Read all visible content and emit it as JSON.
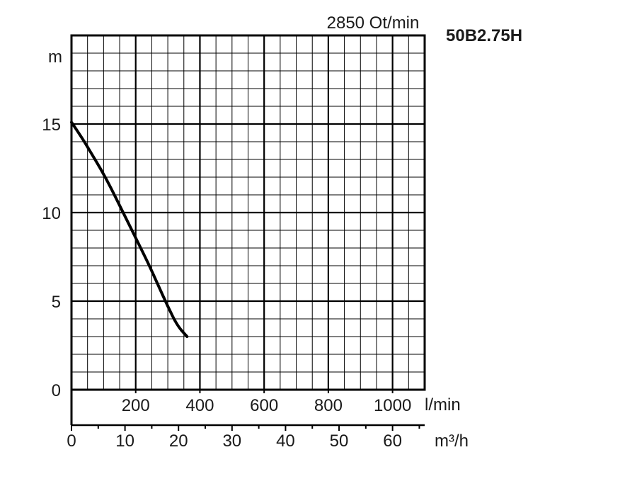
{
  "chart_data": {
    "type": "line",
    "model": "50B2.75H",
    "speed_label": "2850 Ot/min",
    "ylabel": "m",
    "ylim": [
      0,
      20
    ],
    "y_ticks": [
      0,
      5,
      10,
      15
    ],
    "x_primary": {
      "unit": "l/min",
      "range": [
        0,
        1100
      ],
      "ticks": [
        200,
        400,
        600,
        800,
        1000
      ],
      "tick_labels": [
        "200",
        "400",
        "600",
        "800",
        "1000"
      ]
    },
    "x_secondary": {
      "unit": "m³/h",
      "range": [
        0,
        66
      ],
      "ticks": [
        0,
        10,
        20,
        30,
        40,
        50,
        60
      ],
      "tick_labels": [
        "0",
        "10",
        "20",
        "30",
        "40",
        "50",
        "60"
      ]
    },
    "grid": true,
    "series": [
      {
        "x_lpm": [
          0,
          30,
          60,
          90,
          120,
          150,
          180,
          210,
          240,
          270,
          300,
          330,
          360
        ],
        "head_m": [
          15.1,
          14.3,
          13.4,
          12.5,
          11.5,
          10.4,
          9.3,
          8.2,
          7.1,
          5.9,
          4.7,
          3.6,
          3.0
        ]
      }
    ]
  }
}
